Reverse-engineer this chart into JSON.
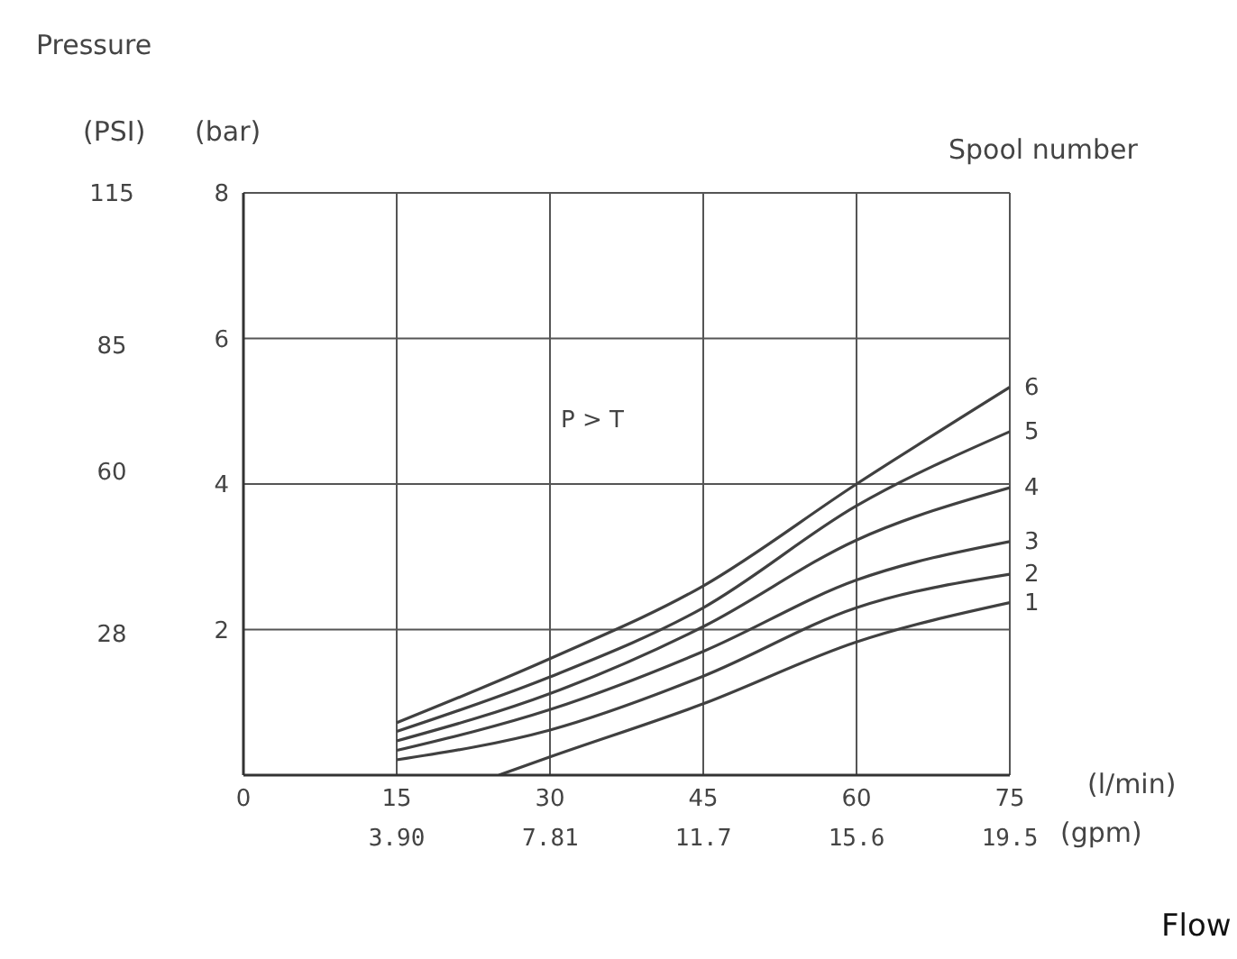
{
  "chart_data": {
    "type": "line",
    "xlabel": "(l/min)",
    "x2label": "(gpm)",
    "ylabel": "(bar)",
    "y2label": "(PSI)",
    "annotations": [
      "Pressure",
      "Spool number",
      "P > T",
      "Flow"
    ],
    "series": [
      {
        "name": "1",
        "color": "#404040",
        "x": [
          25,
          30,
          45,
          60,
          75
        ],
        "values": [
          0,
          0.25,
          0.98,
          1.83,
          2.37
        ]
      },
      {
        "name": "2",
        "color": "#404040",
        "x": [
          15,
          30,
          45,
          60,
          75
        ],
        "values": [
          0.21,
          0.62,
          1.36,
          2.3,
          2.76
        ]
      },
      {
        "name": "3",
        "color": "#404040",
        "x": [
          15,
          30,
          45,
          60,
          75
        ],
        "values": [
          0.34,
          0.9,
          1.7,
          2.68,
          3.21
        ]
      },
      {
        "name": "4",
        "color": "#404040",
        "x": [
          15,
          30,
          45,
          60,
          75
        ],
        "values": [
          0.47,
          1.12,
          2.04,
          3.23,
          3.95
        ]
      },
      {
        "name": "5",
        "color": "#404040",
        "x": [
          15,
          30,
          45,
          60,
          75
        ],
        "values": [
          0.6,
          1.35,
          2.3,
          3.7,
          4.72
        ]
      },
      {
        "name": "6",
        "color": "#404040",
        "x": [
          15,
          30,
          45,
          60,
          75
        ],
        "values": [
          0.72,
          1.6,
          2.6,
          4.0,
          5.33
        ]
      }
    ],
    "xlim": [
      0,
      75
    ],
    "xticks": [
      0,
      15,
      30,
      45,
      60,
      75
    ],
    "x2lim": [
      0,
      19.5
    ],
    "x2ticks": [
      {
        "value": 3.9,
        "label": "3.90"
      },
      7.81,
      11.7,
      15.6,
      19.5
    ],
    "ylim": [
      0,
      8
    ],
    "yticks": [
      {
        "value": 0,
        "label": null
      },
      2,
      4,
      6,
      8
    ],
    "y2lim": [
      0,
      115
    ],
    "y2ticks": [
      28,
      60,
      85,
      115
    ],
    "grid": true,
    "legend": false,
    "marker": "none",
    "line_style": "solid"
  }
}
